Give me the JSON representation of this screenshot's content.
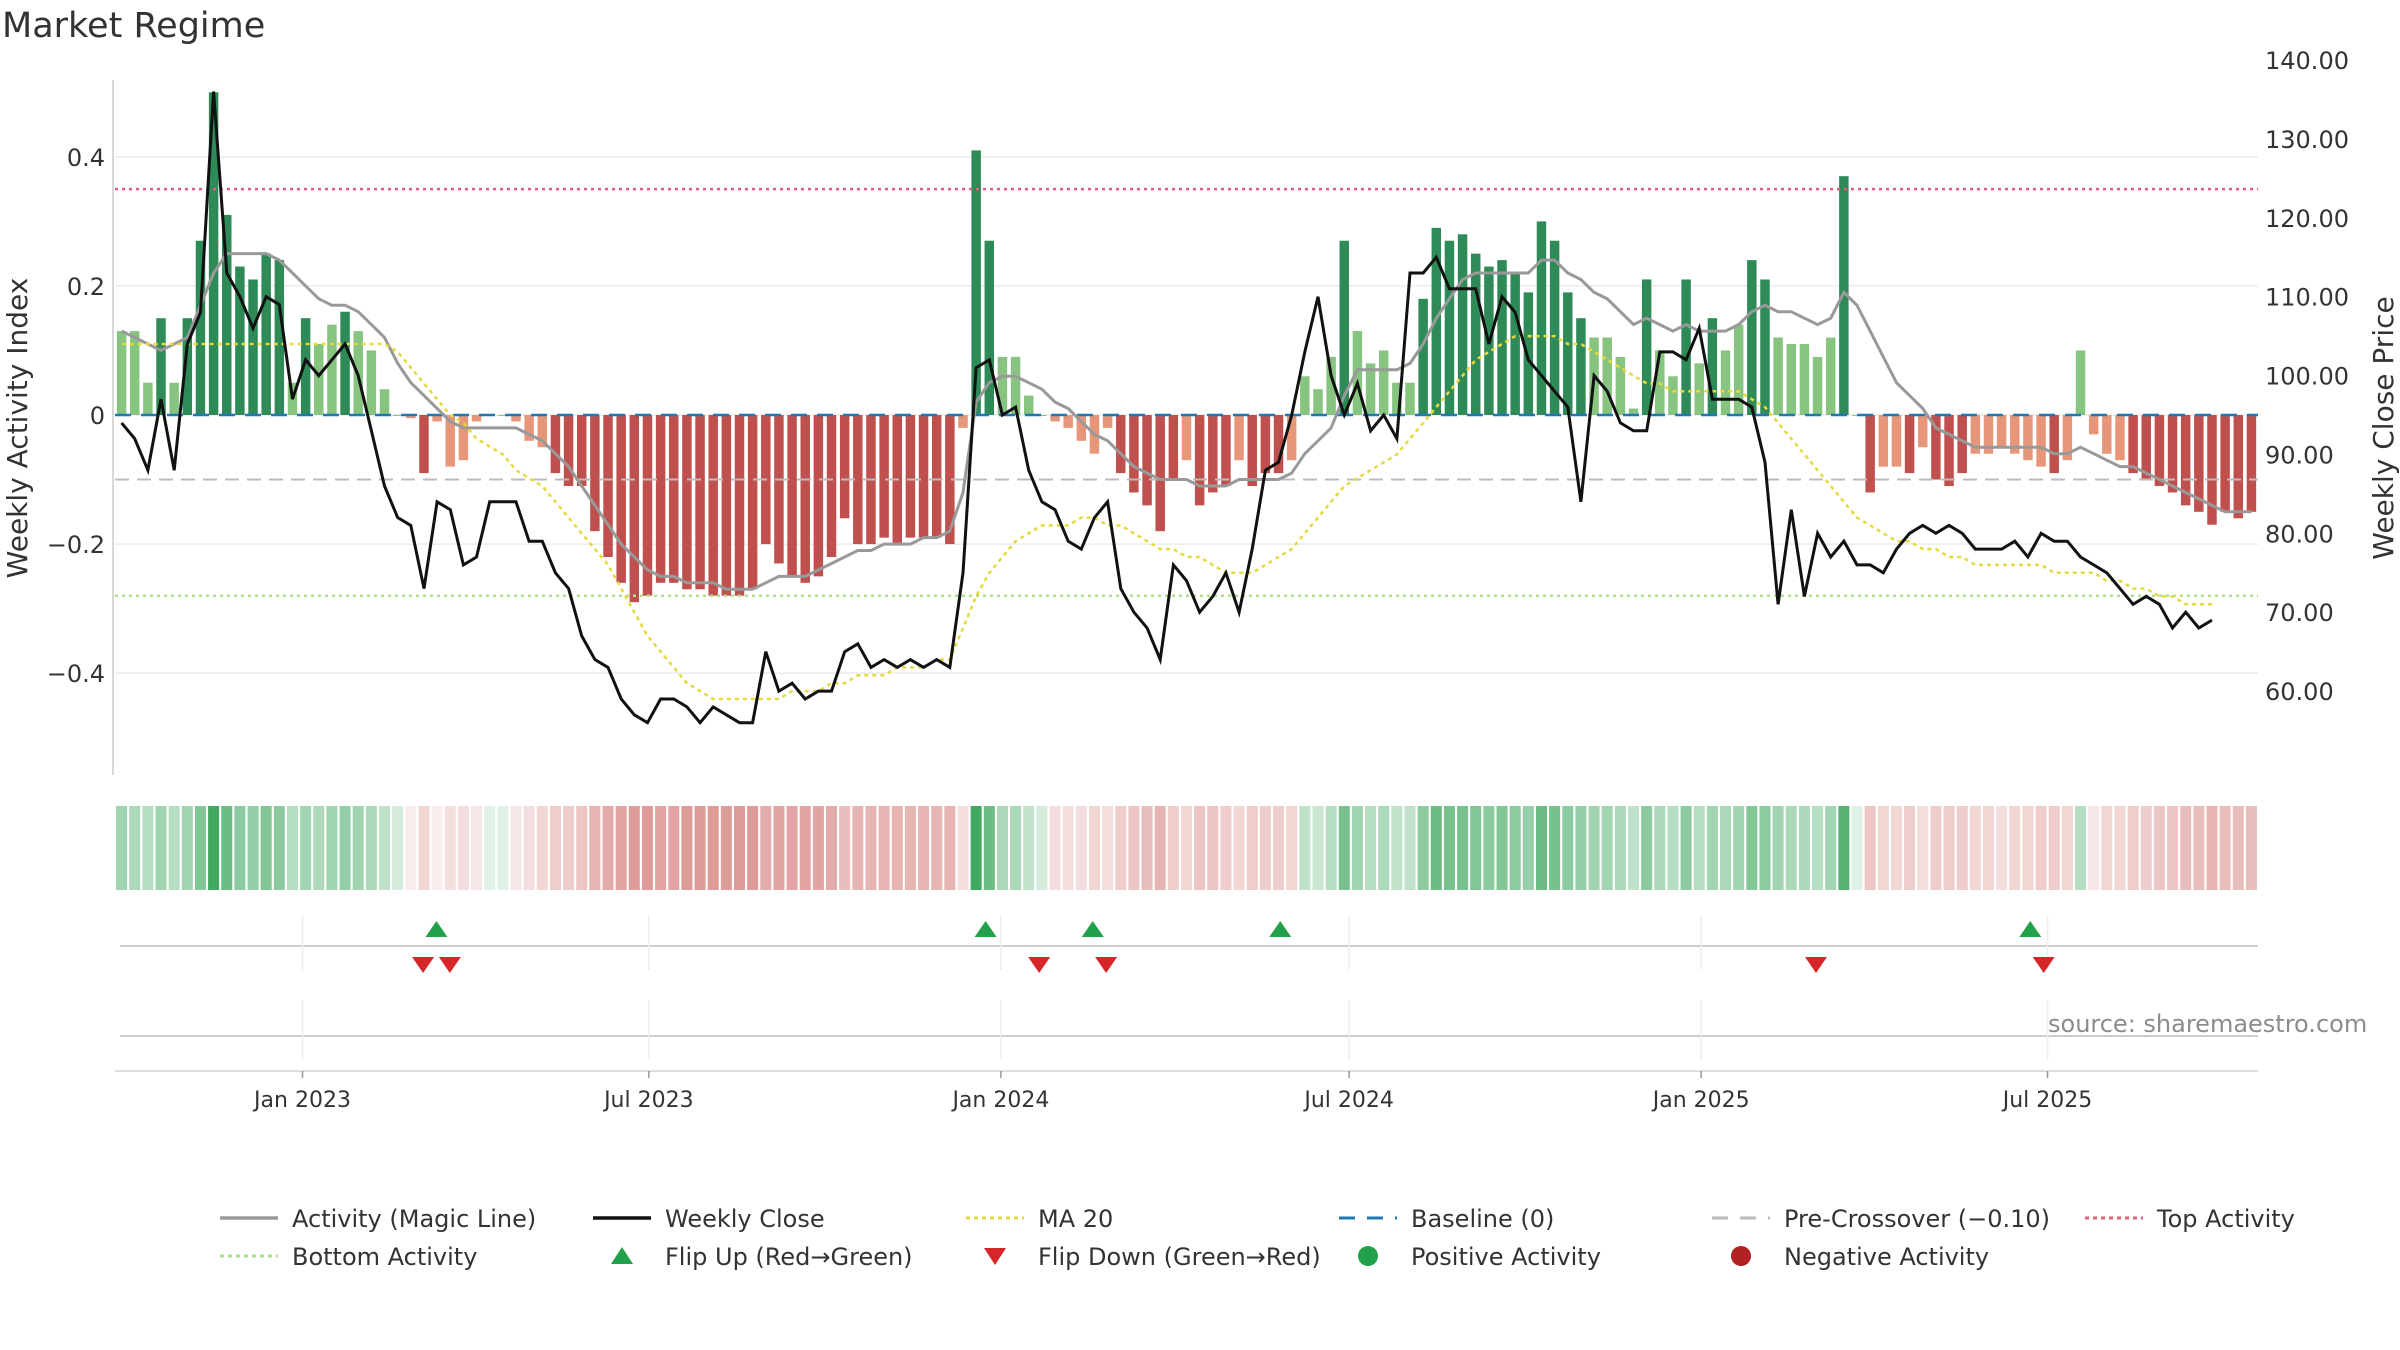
{
  "chart_data": {
    "type": "bar",
    "title": "Market Regime",
    "ylabel_left": "Weekly Activity Index",
    "ylabel_right": "Weekly Close Price",
    "source_note": "source: sharemaestro.com",
    "left_axis": {
      "ylim": [
        -0.55,
        0.55
      ],
      "ticks": [
        0.4,
        0.2,
        0,
        -0.2,
        -0.4
      ],
      "tick_labels": [
        "0.4",
        "0.2",
        "0",
        "−0.2",
        "−0.4"
      ]
    },
    "right_axis": {
      "ylim": [
        50,
        140
      ],
      "ticks": [
        140,
        130,
        120,
        110,
        100,
        90,
        80,
        70,
        60
      ],
      "tick_labels": [
        "140.00",
        "130.00",
        "120.00",
        "110.00",
        "100.00",
        "90.00",
        "80.00",
        "70.00",
        "60.00"
      ]
    },
    "x_axis": {
      "start": "2022-09-25",
      "end": "2025-10-19",
      "ticks": [
        "2023-01-01",
        "2023-07-01",
        "2024-01-01",
        "2024-07-01",
        "2025-01-01",
        "2025-07-01"
      ],
      "tick_labels": [
        "Jan 2023",
        "Jul 2023",
        "Jan 2024",
        "Jul 2024",
        "Jan 2025",
        "Jul 2025"
      ]
    },
    "reference_lines": {
      "top_activity": 0.35,
      "bottom_activity": -0.28,
      "pre_crossover": -0.1,
      "baseline": 0
    },
    "colors": {
      "positive_strong": "#2e8b57",
      "positive_light": "#86c47f",
      "negative_strong": "#c0504d",
      "negative_light": "#e8967a",
      "magic_line": "#999999",
      "close": "#111111",
      "ma20": "#e6d93c",
      "baseline": "#1f77b4",
      "pre_crossover": "#bbbbbb",
      "top": "#e0607e",
      "bottom": "#b5e08a",
      "flip_up": "#22a04a",
      "flip_down": "#d62728"
    },
    "legend_placement": "bottom",
    "legend": [
      {
        "label": "Activity (Magic Line)",
        "kind": "line",
        "color": "#999999"
      },
      {
        "label": "Weekly Close",
        "kind": "line",
        "color": "#111111"
      },
      {
        "label": "MA 20",
        "kind": "dotted",
        "color": "#e6d93c"
      },
      {
        "label": "Baseline (0)",
        "kind": "dashed",
        "color": "#1f77b4"
      },
      {
        "label": "Pre-Crossover (−0.10)",
        "kind": "dashed",
        "color": "#bbbbbb"
      },
      {
        "label": "Top Activity",
        "kind": "dotted",
        "color": "#e0607e"
      },
      {
        "label": "Bottom Activity",
        "kind": "dotted",
        "color": "#b5e08a"
      },
      {
        "label": "Flip Up (Red→Green)",
        "kind": "triangle-up",
        "color": "#22a04a"
      },
      {
        "label": "Flip Down (Green→Red)",
        "kind": "triangle-down",
        "color": "#d62728"
      },
      {
        "label": "Positive Activity",
        "kind": "circle",
        "color": "#22a04a"
      },
      {
        "label": "Negative Activity",
        "kind": "circle",
        "color": "#b22222"
      }
    ],
    "activity": [
      0.13,
      0.13,
      0.05,
      0.15,
      0.05,
      0.15,
      0.27,
      0.5,
      0.31,
      0.23,
      0.21,
      0.25,
      0.24,
      0.05,
      0.15,
      0.11,
      0.14,
      0.16,
      0.13,
      0.1,
      0.04,
      0,
      -0.005,
      -0.09,
      -0.01,
      -0.08,
      -0.07,
      -0.01,
      0,
      0,
      -0.01,
      -0.04,
      -0.05,
      -0.09,
      -0.11,
      -0.11,
      -0.18,
      -0.22,
      -0.26,
      -0.29,
      -0.28,
      -0.26,
      -0.26,
      -0.27,
      -0.27,
      -0.28,
      -0.28,
      -0.28,
      -0.27,
      -0.2,
      -0.23,
      -0.25,
      -0.26,
      -0.25,
      -0.22,
      -0.16,
      -0.2,
      -0.2,
      -0.19,
      -0.2,
      -0.19,
      -0.19,
      -0.19,
      -0.2,
      -0.02,
      0.41,
      0.27,
      0.09,
      0.09,
      0.03,
      0,
      -0.01,
      -0.02,
      -0.04,
      -0.06,
      -0.02,
      -0.09,
      -0.12,
      -0.14,
      -0.18,
      -0.1,
      -0.07,
      -0.14,
      -0.12,
      -0.11,
      -0.07,
      -0.11,
      -0.09,
      -0.09,
      -0.07,
      0.06,
      0.04,
      0.09,
      0.27,
      0.13,
      0.08,
      0.1,
      0.05,
      0.05,
      0.18,
      0.29,
      0.27,
      0.28,
      0.25,
      0.23,
      0.24,
      0.22,
      0.19,
      0.3,
      0.27,
      0.19,
      0.15,
      0.12,
      0.12,
      0.09,
      0.01,
      0.21,
      0.1,
      0.06,
      0.21,
      0.08,
      0.15,
      0.1,
      0.14,
      0.24,
      0.21,
      0.12,
      0.11,
      0.11,
      0.09,
      0.12,
      0.37,
      0,
      -0.12,
      -0.08,
      -0.08,
      -0.09,
      -0.05,
      -0.1,
      -0.11,
      -0.09,
      -0.06,
      -0.06,
      -0.05,
      -0.06,
      -0.07,
      -0.08,
      -0.09,
      -0.07,
      0.1,
      -0.03,
      -0.06,
      -0.07,
      -0.09,
      -0.1,
      -0.11,
      -0.12,
      -0.14,
      -0.15,
      -0.17,
      -0.15,
      -0.16,
      -0.15
    ],
    "weekly_close": [
      94,
      92,
      88,
      97,
      88,
      104,
      108,
      136,
      113,
      110,
      106,
      110,
      109,
      97,
      102,
      100,
      102,
      104,
      100,
      93,
      86,
      82,
      81,
      73,
      84,
      83,
      76,
      77,
      84,
      84,
      84,
      79,
      79,
      75,
      73,
      67,
      64,
      63,
      59,
      57,
      56,
      59,
      59,
      58,
      56,
      58,
      57,
      56,
      56,
      65,
      60,
      61,
      59,
      60,
      60,
      65,
      66,
      63,
      64,
      63,
      64,
      63,
      64,
      63,
      75,
      101,
      102,
      95,
      96,
      88,
      84,
      83,
      79,
      78,
      82,
      84,
      73,
      70,
      68,
      64,
      76,
      74,
      70,
      72,
      75,
      70,
      78,
      88,
      89,
      95,
      103,
      110,
      100,
      95,
      99,
      93,
      95,
      92,
      113,
      113,
      115,
      111,
      111,
      111,
      104,
      110,
      108,
      102,
      100,
      98,
      96,
      84,
      100,
      98,
      94,
      93,
      93,
      103,
      103,
      102,
      106,
      97,
      97,
      97,
      96,
      89,
      71,
      83,
      72,
      80,
      77,
      79,
      76,
      76,
      75,
      78,
      80,
      81,
      80,
      81,
      80,
      78,
      78,
      78,
      79,
      77,
      80,
      79,
      79,
      77,
      76,
      75,
      73,
      71,
      72,
      71,
      68,
      70,
      68,
      69
    ],
    "magic_line": [
      0.13,
      0.12,
      0.11,
      0.1,
      0.11,
      0.12,
      0.17,
      0.22,
      0.25,
      0.25,
      0.25,
      0.25,
      0.24,
      0.22,
      0.2,
      0.18,
      0.17,
      0.17,
      0.16,
      0.14,
      0.12,
      0.08,
      0.05,
      0.03,
      0.01,
      -0.01,
      -0.02,
      -0.02,
      -0.02,
      -0.02,
      -0.02,
      -0.03,
      -0.04,
      -0.06,
      -0.08,
      -0.11,
      -0.14,
      -0.17,
      -0.2,
      -0.22,
      -0.24,
      -0.25,
      -0.25,
      -0.26,
      -0.26,
      -0.26,
      -0.27,
      -0.27,
      -0.27,
      -0.26,
      -0.25,
      -0.25,
      -0.25,
      -0.24,
      -0.23,
      -0.22,
      -0.21,
      -0.21,
      -0.2,
      -0.2,
      -0.2,
      -0.19,
      -0.19,
      -0.18,
      -0.12,
      0.02,
      0.05,
      0.06,
      0.06,
      0.05,
      0.04,
      0.02,
      0.01,
      -0.01,
      -0.03,
      -0.04,
      -0.06,
      -0.08,
      -0.09,
      -0.1,
      -0.1,
      -0.1,
      -0.11,
      -0.11,
      -0.11,
      -0.1,
      -0.1,
      -0.1,
      -0.1,
      -0.09,
      -0.06,
      -0.04,
      -0.02,
      0.03,
      0.07,
      0.07,
      0.07,
      0.07,
      0.08,
      0.11,
      0.15,
      0.18,
      0.21,
      0.22,
      0.22,
      0.22,
      0.22,
      0.22,
      0.24,
      0.24,
      0.22,
      0.21,
      0.19,
      0.18,
      0.16,
      0.14,
      0.15,
      0.14,
      0.13,
      0.14,
      0.13,
      0.13,
      0.13,
      0.14,
      0.16,
      0.17,
      0.16,
      0.16,
      0.15,
      0.14,
      0.15,
      0.19,
      0.17,
      0.13,
      0.09,
      0.05,
      0.03,
      0.01,
      -0.02,
      -0.03,
      -0.04,
      -0.05,
      -0.05,
      -0.05,
      -0.05,
      -0.05,
      -0.05,
      -0.06,
      -0.06,
      -0.05,
      -0.06,
      -0.07,
      -0.08,
      -0.08,
      -0.09,
      -0.1,
      -0.11,
      -0.12,
      -0.13,
      -0.14,
      -0.15,
      -0.15,
      -0.15
    ],
    "ma20": [
      104,
      104,
      104,
      104,
      104,
      104,
      104,
      104,
      104,
      104,
      104,
      104,
      104,
      104,
      104,
      104,
      104,
      104,
      104,
      104,
      104,
      103,
      101,
      99,
      97,
      95,
      94,
      92,
      91,
      90,
      88,
      87,
      86,
      84,
      82,
      80,
      78,
      76,
      73,
      70,
      67,
      65,
      63,
      61,
      60,
      59,
      59,
      59,
      59,
      59,
      59,
      60,
      60,
      60,
      61,
      61,
      62,
      62,
      62,
      63,
      63,
      63,
      64,
      64,
      68,
      72,
      75,
      77,
      79,
      80,
      81,
      81,
      81,
      82,
      82,
      81,
      81,
      80,
      79,
      78,
      78,
      77,
      77,
      76,
      75,
      75,
      75,
      76,
      77,
      78,
      80,
      82,
      84,
      86,
      87,
      88,
      89,
      90,
      92,
      94,
      96,
      98,
      100,
      102,
      103,
      104,
      105,
      105,
      105,
      105,
      104,
      104,
      103,
      102,
      101,
      100,
      99,
      99,
      98,
      98,
      98,
      98,
      98,
      98,
      97,
      96,
      94,
      92,
      90,
      88,
      86,
      84,
      82,
      81,
      80,
      79,
      79,
      78,
      78,
      77,
      77,
      76,
      76,
      76,
      76,
      76,
      76,
      75,
      75,
      75,
      75,
      74,
      74,
      73,
      73,
      72,
      72,
      71,
      71,
      71
    ],
    "regime_intensity": [
      0.45,
      0.4,
      0.35,
      0.45,
      0.35,
      0.45,
      0.6,
      0.9,
      0.7,
      0.55,
      0.5,
      0.6,
      0.55,
      0.35,
      0.45,
      0.4,
      0.45,
      0.5,
      0.45,
      0.4,
      0.3,
      0.2,
      0.1,
      0.25,
      0.1,
      0.2,
      0.2,
      0.15,
      0.15,
      0.15,
      0.15,
      0.2,
      0.25,
      0.3,
      0.3,
      0.35,
      0.45,
      0.5,
      0.55,
      0.6,
      0.6,
      0.55,
      0.55,
      0.6,
      0.6,
      0.6,
      0.6,
      0.6,
      0.6,
      0.5,
      0.55,
      0.55,
      0.55,
      0.55,
      0.5,
      0.4,
      0.45,
      0.45,
      0.45,
      0.45,
      0.45,
      0.45,
      0.45,
      0.45,
      0.2,
      0.9,
      0.7,
      0.4,
      0.4,
      0.3,
      0.2,
      0.2,
      0.2,
      0.2,
      0.25,
      0.2,
      0.3,
      0.35,
      0.4,
      0.45,
      0.3,
      0.25,
      0.35,
      0.35,
      0.3,
      0.25,
      0.3,
      0.3,
      0.3,
      0.25,
      0.3,
      0.25,
      0.35,
      0.65,
      0.45,
      0.35,
      0.4,
      0.3,
      0.3,
      0.55,
      0.7,
      0.65,
      0.65,
      0.6,
      0.55,
      0.6,
      0.55,
      0.5,
      0.7,
      0.65,
      0.55,
      0.5,
      0.45,
      0.45,
      0.4,
      0.3,
      0.55,
      0.4,
      0.35,
      0.55,
      0.35,
      0.45,
      0.4,
      0.45,
      0.6,
      0.55,
      0.45,
      0.4,
      0.4,
      0.35,
      0.45,
      0.8,
      0.15,
      0.35,
      0.25,
      0.25,
      0.3,
      0.2,
      0.3,
      0.3,
      0.3,
      0.25,
      0.25,
      0.2,
      0.25,
      0.25,
      0.3,
      0.3,
      0.25,
      0.35,
      0.15,
      0.25,
      0.25,
      0.3,
      0.3,
      0.35,
      0.35,
      0.4,
      0.4,
      0.45,
      0.4,
      0.4,
      0.4
    ],
    "flip_up": [
      "2023-03-12",
      "2023-12-24",
      "2024-02-18",
      "2024-05-26",
      "2025-06-22"
    ],
    "flip_down": [
      "2023-03-05",
      "2023-03-19",
      "2024-01-21",
      "2024-02-25",
      "2025-03-02",
      "2025-06-29"
    ]
  }
}
